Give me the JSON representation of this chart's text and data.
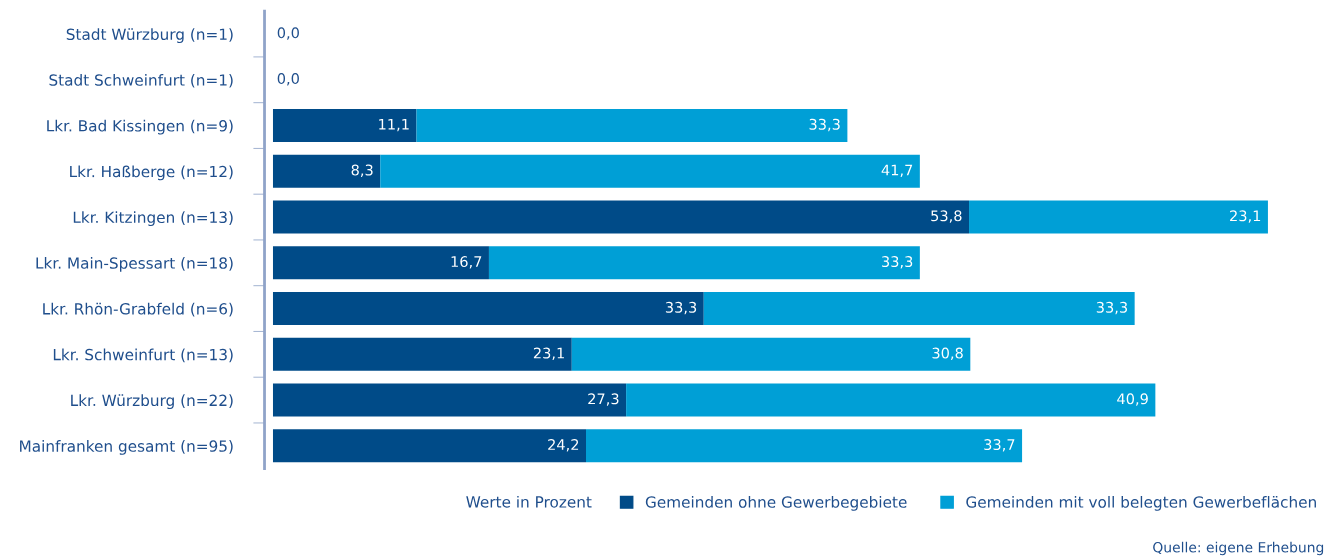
{
  "chart_data": {
    "type": "bar",
    "orientation": "horizontal",
    "stacked": true,
    "categories": [
      "Stadt Würzburg (n=1)",
      "Stadt Schweinfurt (n=1)",
      "Lkr. Bad Kissingen (n=9)",
      "Lkr. Haßberge (n=12)",
      "Lkr. Kitzingen (n=13)",
      "Lkr. Main-Spessart (n=18)",
      "Lkr. Rhön-Grabfeld (n=6)",
      "Lkr. Schweinfurt (n=13)",
      "Lkr. Würzburg (n=22)",
      "Mainfranken gesamt (n=95)"
    ],
    "series": [
      {
        "name": "Gemeinden ohne Gewerbegebiete",
        "color": "#004b88",
        "values": [
          0,
          0,
          11.1,
          8.3,
          53.8,
          16.7,
          33.3,
          23.1,
          27.3,
          24.2
        ],
        "value_labels": [
          "0,0",
          "0,0",
          "11,1",
          "8,3",
          "53,8",
          "16,7",
          "33,3",
          "23,1",
          "27,3",
          "24,2"
        ]
      },
      {
        "name": "Gemeinden mit voll belegten Gewerbeflächen",
        "color": "#009fd6",
        "values": [
          0,
          0,
          33.3,
          41.7,
          23.1,
          33.3,
          33.3,
          30.8,
          40.9,
          33.7
        ],
        "value_labels": [
          null,
          null,
          "33,3",
          "41,7",
          "23,1",
          "33,3",
          "33,3",
          "30,8",
          "40,9",
          "33,7"
        ]
      }
    ],
    "legend_title": "Werte in Prozent",
    "legend": "bottom right",
    "annotations": [
      "Quelle: eigene Erhebung"
    ]
  }
}
